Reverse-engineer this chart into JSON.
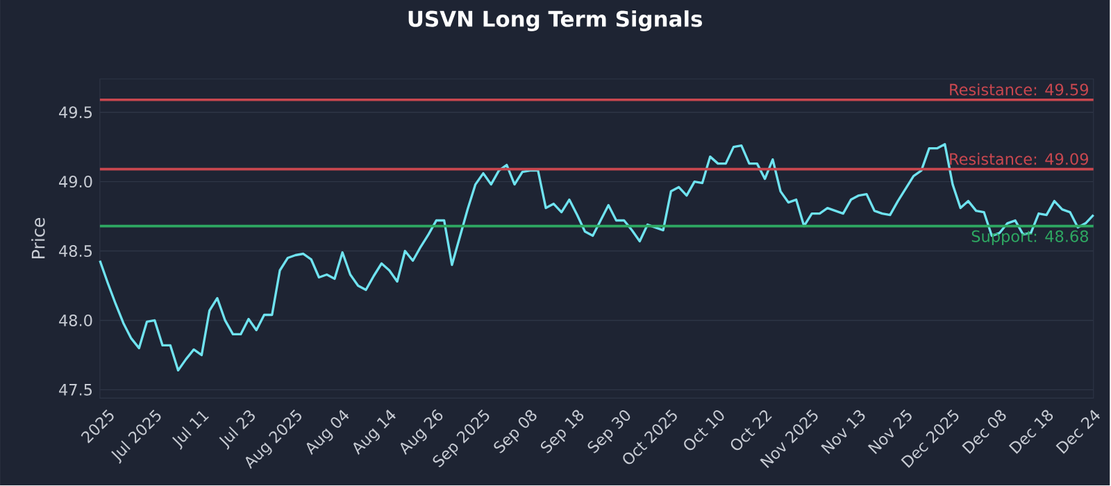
{
  "chart_data": {
    "type": "line",
    "title": "USVN Long Term Signals",
    "ylabel": "Price",
    "categories": [
      null,
      "2025",
      null,
      null,
      null,
      null,
      null,
      "Jul 2025",
      null,
      null,
      null,
      null,
      null,
      "Jul 11",
      null,
      null,
      null,
      null,
      null,
      "Jul 23",
      null,
      null,
      null,
      null,
      null,
      "Aug 2025",
      null,
      null,
      null,
      null,
      null,
      "Aug 04",
      null,
      null,
      null,
      null,
      null,
      "Aug 14",
      null,
      null,
      null,
      null,
      null,
      "Aug 26",
      null,
      null,
      null,
      null,
      null,
      "Sep 2025",
      null,
      null,
      null,
      null,
      null,
      "Sep 08",
      null,
      null,
      null,
      null,
      null,
      "Sep 18",
      null,
      null,
      null,
      null,
      null,
      "Sep 30",
      null,
      null,
      null,
      null,
      null,
      "Oct 2025",
      null,
      null,
      null,
      null,
      null,
      "Oct 10",
      null,
      null,
      null,
      null,
      null,
      "Oct 22",
      null,
      null,
      null,
      null,
      null,
      "Nov 2025",
      null,
      null,
      null,
      null,
      null,
      "Nov 13",
      null,
      null,
      null,
      null,
      null,
      "Nov 25",
      null,
      null,
      null,
      null,
      null,
      "Dec 2025",
      null,
      null,
      null,
      null,
      null,
      "Dec 08",
      null,
      null,
      null,
      null,
      null,
      "Dec 18",
      null,
      null,
      null,
      null,
      null,
      "Dec 24"
    ],
    "series": [
      {
        "color": "#6fe3f0",
        "values": [
          48.43,
          48.27,
          48.12,
          47.98,
          47.87,
          47.8,
          47.99,
          48.0,
          47.82,
          47.82,
          47.64,
          47.72,
          47.79,
          47.75,
          48.07,
          48.16,
          48.0,
          47.9,
          47.9,
          48.01,
          47.93,
          48.04,
          48.04,
          48.36,
          48.45,
          48.47,
          48.48,
          48.44,
          48.31,
          48.33,
          48.3,
          48.49,
          48.33,
          48.25,
          48.22,
          48.32,
          48.41,
          48.36,
          48.28,
          48.5,
          48.43,
          48.53,
          48.62,
          48.72,
          48.72,
          48.4,
          48.6,
          48.8,
          48.98,
          49.06,
          48.98,
          49.08,
          49.12,
          48.98,
          49.07,
          49.08,
          49.08,
          48.81,
          48.84,
          48.78,
          48.87,
          48.76,
          48.64,
          48.61,
          48.72,
          48.83,
          48.72,
          48.72,
          48.65,
          48.57,
          48.69,
          48.67,
          48.65,
          48.93,
          48.96,
          48.9,
          49.0,
          48.99,
          49.18,
          49.13,
          49.13,
          49.25,
          49.26,
          49.13,
          49.13,
          49.02,
          49.16,
          48.93,
          48.85,
          48.87,
          48.68,
          48.77,
          48.77,
          48.81,
          48.79,
          48.77,
          48.87,
          48.9,
          48.91,
          48.79,
          48.77,
          48.76,
          48.86,
          48.95,
          49.04,
          49.08,
          49.24,
          49.24,
          49.27,
          48.98,
          48.81,
          48.86,
          48.79,
          48.78,
          48.61,
          48.63,
          48.7,
          48.72,
          48.62,
          48.63,
          48.77,
          48.76,
          48.86,
          48.8,
          48.78,
          48.67,
          48.7,
          48.76
        ]
      }
    ],
    "ylim": [
      47.44,
      49.74
    ],
    "yticks": [
      47.5,
      {
        "value": 48,
        "label": "48.0"
      },
      48.5,
      {
        "value": 49,
        "label": "49.0"
      },
      49.5
    ],
    "grid": "y",
    "ref_lines": [
      {
        "axis": "y",
        "value": 49.59,
        "label": "Resistance: 49.59",
        "color": "#c9474f"
      },
      {
        "axis": "y",
        "value": 49.09,
        "label": "Resistance: 49.09",
        "color": "#c9474f"
      },
      {
        "axis": "y",
        "value": 48.68,
        "label": "Support: 48.68",
        "color": "#2ea862"
      }
    ]
  }
}
